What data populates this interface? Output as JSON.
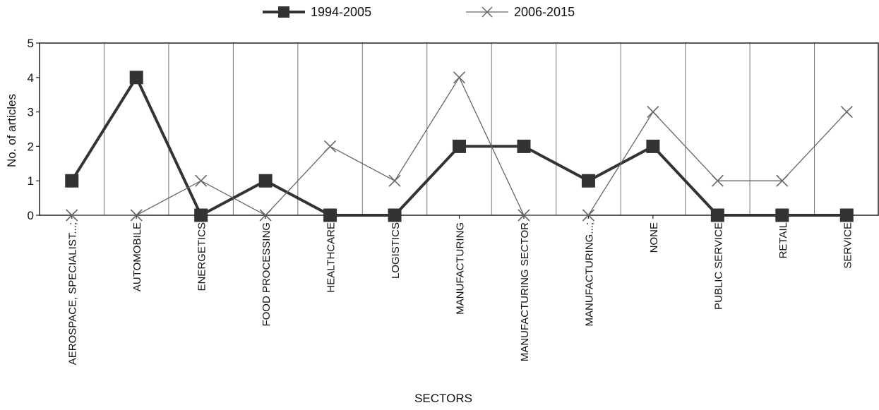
{
  "chart_data": {
    "type": "line",
    "categories": [
      "AEROSPACE, SPECIALIST...;",
      "AUTOMOBILE",
      "ENERGETICS",
      "FOOD PROCESSING",
      "HEALTHCARE",
      "LOGISTICS",
      "MANUFACTURING",
      "MANUFACTURING SECTOR",
      "MANUFACTURING...;",
      "NONE",
      "PUBLIC SERVICE",
      "RETAIL",
      "SERVICE"
    ],
    "series": [
      {
        "name": "1994-2005",
        "values": [
          1,
          4,
          0,
          1,
          0,
          0,
          2,
          2,
          1,
          2,
          0,
          0,
          0
        ],
        "color": "#333333",
        "marker": "square"
      },
      {
        "name": "2006-2015",
        "values": [
          0,
          0,
          1,
          0,
          2,
          1,
          4,
          0,
          0,
          3,
          1,
          1,
          3
        ],
        "color": "#666666",
        "marker": "x"
      }
    ],
    "title": "",
    "xlabel": "SECTORS",
    "ylabel": "No. of articles",
    "ylim": [
      0,
      5
    ],
    "yticks": [
      0,
      1,
      2,
      3,
      4,
      5
    ],
    "grid": "vertical",
    "legend": "top-center"
  }
}
